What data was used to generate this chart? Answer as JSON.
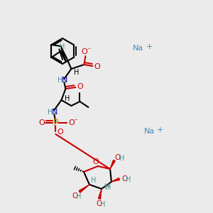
{
  "bg_color": "#ebebeb",
  "colors": {
    "black": "#000000",
    "red": "#cc0000",
    "teal": "#4a9090",
    "blue": "#0000bb",
    "orange": "#cc8800",
    "na_blue": "#4488bb"
  }
}
